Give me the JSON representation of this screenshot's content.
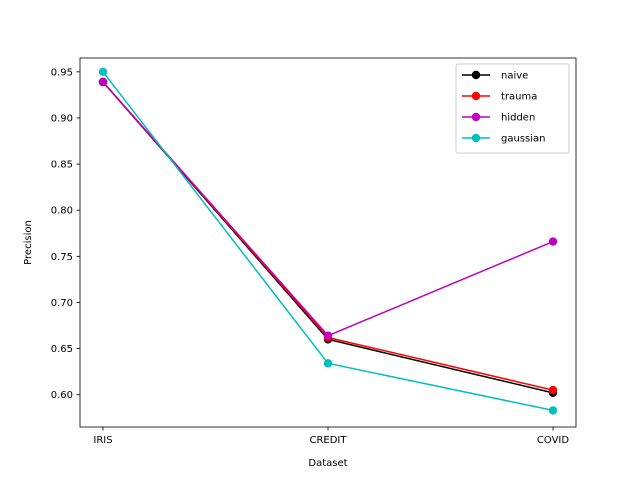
{
  "chart_data": {
    "type": "line",
    "title": "",
    "xlabel": "Dataset",
    "ylabel": "Precision",
    "categories": [
      "IRIS",
      "CREDIT",
      "COVID"
    ],
    "ylim": [
      0.565,
      0.965
    ],
    "yticks": [
      "0.60",
      "0.65",
      "0.70",
      "0.75",
      "0.80",
      "0.85",
      "0.90",
      "0.95"
    ],
    "grid": false,
    "legend_position": "top-right",
    "series": [
      {
        "name": "naive",
        "color": "#000000",
        "values": [
          0.939,
          0.66,
          0.602
        ]
      },
      {
        "name": "trauma",
        "color": "#ff0000",
        "values": [
          0.939,
          0.662,
          0.605
        ]
      },
      {
        "name": "hidden",
        "color": "#bf00bf",
        "values": [
          0.939,
          0.664,
          0.766
        ]
      },
      {
        "name": "gaussian",
        "color": "#00bfbf",
        "values": [
          0.95,
          0.634,
          0.583
        ]
      }
    ]
  }
}
